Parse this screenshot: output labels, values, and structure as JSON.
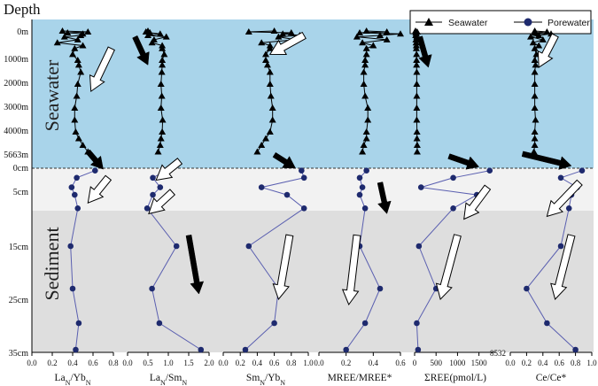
{
  "chart_data": {
    "type": "line",
    "y_axis_title": "Depth",
    "zones": [
      "Seawater",
      "Sediment"
    ],
    "legend": [
      {
        "name": "Seawater",
        "marker": "triangle",
        "color": "#000000"
      },
      {
        "name": "Porewater",
        "marker": "circle",
        "color": "#1e2a6e"
      }
    ],
    "water_y_ticks": [
      "0m",
      "1000m",
      "2000m",
      "3000m",
      "4000m",
      "5663m"
    ],
    "water_y_values": [
      0,
      1000,
      2000,
      3000,
      4000,
      5663
    ],
    "sediment_y_ticks": [
      "0cm",
      "5cm",
      "15cm",
      "25cm",
      "35cm"
    ],
    "sediment_y_values": [
      0,
      5,
      15,
      25,
      35
    ],
    "colors": {
      "seawater_bg": "#a9d4ea",
      "upper_sediment_bg": "#f2f2f2",
      "lower_sediment_bg": "#dedede",
      "porewater_line": "#5a5fb0",
      "marker": "#1e2a6e"
    },
    "panels": [
      {
        "xlabel": "LaN/YbN",
        "xlabel_main": "La",
        "xlabel_sub1": "N",
        "xlabel_mid": "/Yb",
        "xlabel_sub2": "N",
        "xlim": [
          0,
          0.8
        ],
        "ticks": [
          0.0,
          0.2,
          0.4,
          0.6,
          0.8
        ],
        "tick_labels": [
          "0.0",
          "0.2",
          "0.4",
          "0.6",
          "0.8"
        ],
        "seawater": {
          "depth_m": [
            0,
            30,
            60,
            100,
            150,
            200,
            300,
            400,
            500,
            600,
            800,
            1000,
            1200,
            1500,
            2000,
            2500,
            3000,
            3500,
            4000,
            4500,
            5000,
            5500
          ],
          "values": [
            0.3,
            0.55,
            0.35,
            0.5,
            0.48,
            0.32,
            0.45,
            0.25,
            0.5,
            0.42,
            0.4,
            0.45,
            0.46,
            0.48,
            0.45,
            0.44,
            0.42,
            0.42,
            0.43,
            0.46,
            0.5,
            0.55
          ]
        },
        "porewater": {
          "depth_cm": [
            0.5,
            2,
            4,
            5.5,
            8,
            15,
            23,
            29.5,
            34.5
          ],
          "values": [
            0.62,
            0.44,
            0.39,
            0.42,
            0.45,
            0.38,
            0.4,
            0.46,
            0.43
          ]
        },
        "arrows": [
          {
            "type": "hollow",
            "x1": 0.78,
            "d1": 600,
            "x2": 0.58,
            "d2": 2300,
            "zone": "water"
          },
          {
            "type": "solid",
            "x1": 0.55,
            "d1": -3.5,
            "x2": 0.7,
            "d2": 0.2,
            "zone": "sed"
          },
          {
            "type": "hollow",
            "x1": 0.75,
            "d1": 2,
            "x2": 0.55,
            "d2": 7,
            "zone": "sed"
          }
        ]
      },
      {
        "xlabel": "LaN/SmN",
        "xlabel_main": "La",
        "xlabel_sub1": "N",
        "xlabel_mid": "/Sm",
        "xlabel_sub2": "N",
        "xlim": [
          0,
          2.0
        ],
        "ticks": [
          0.0,
          0.5,
          1.0,
          1.5,
          2.0
        ],
        "tick_labels": [
          "0.0",
          "0.5",
          "1.0",
          "1.5",
          "2.0"
        ],
        "seawater": {
          "depth_m": [
            0,
            30,
            60,
            100,
            150,
            200,
            300,
            400,
            500,
            600,
            800,
            1000,
            1200,
            1500,
            2000,
            2500,
            3000,
            3500,
            4000,
            4500,
            5000,
            5500
          ],
          "values": [
            0.5,
            0.45,
            0.55,
            0.8,
            0.5,
            0.95,
            0.65,
            0.6,
            0.85,
            0.85,
            0.9,
            0.85,
            0.85,
            0.84,
            0.82,
            0.84,
            0.82,
            0.86,
            0.85,
            0.82,
            0.8,
            0.75
          ]
        },
        "porewater": {
          "depth_cm": [
            0.5,
            2,
            4,
            5.5,
            8,
            15,
            23,
            29.5,
            34.5
          ],
          "values": [
            0.95,
            0.62,
            0.8,
            0.62,
            0.48,
            1.2,
            0.6,
            0.78,
            1.8
          ]
        },
        "arrows": [
          {
            "type": "solid",
            "x1": 0.18,
            "d1": 200,
            "x2": 0.5,
            "d2": 1200,
            "zone": "water"
          },
          {
            "type": "hollow",
            "x1": 1.28,
            "d1": -1.5,
            "x2": 0.7,
            "d2": 2.5,
            "zone": "sed"
          },
          {
            "type": "hollow",
            "x1": 1.1,
            "d1": 5,
            "x2": 0.52,
            "d2": 9,
            "zone": "sed"
          },
          {
            "type": "solid",
            "x1": 1.5,
            "d1": 13,
            "x2": 1.75,
            "d2": 24,
            "zone": "sed"
          }
        ]
      },
      {
        "xlabel": "SmN/YbN",
        "xlabel_main": "Sm",
        "xlabel_sub1": "N",
        "xlabel_mid": "/Yb",
        "xlabel_sub2": "N",
        "xlim": [
          0,
          1.0
        ],
        "ticks": [
          0.0,
          0.2,
          0.4,
          0.6,
          0.8,
          1.0
        ],
        "tick_labels": [
          "0.0",
          "0.2",
          "0.4",
          "0.6",
          "0.8",
          "1.0"
        ],
        "seawater": {
          "depth_m": [
            0,
            30,
            60,
            100,
            150,
            200,
            300,
            400,
            500,
            600,
            800,
            1000,
            1200,
            1500,
            2000,
            2500,
            3000,
            3500,
            4000,
            4500,
            5000,
            5500
          ],
          "values": [
            0.6,
            0.3,
            0.8,
            0.7,
            0.9,
            0.65,
            0.85,
            0.45,
            0.55,
            0.55,
            0.5,
            0.5,
            0.52,
            0.55,
            0.55,
            0.56,
            0.58,
            0.58,
            0.55,
            0.5,
            0.45,
            0.4
          ]
        },
        "porewater": {
          "depth_cm": [
            0.5,
            2,
            4,
            5.5,
            8,
            15,
            23,
            29.5,
            34.5
          ],
          "values": [
            0.92,
            0.95,
            0.45,
            0.75,
            0.95,
            0.3,
            0.65,
            0.6,
            0.26
          ]
        },
        "arrows": [
          {
            "type": "hollow",
            "x1": 0.95,
            "d1": 150,
            "x2": 0.55,
            "d2": 800,
            "zone": "water"
          },
          {
            "type": "solid",
            "x1": 0.6,
            "d1": -2.8,
            "x2": 0.85,
            "d2": 0,
            "zone": "sed"
          },
          {
            "type": "hollow",
            "x1": 0.78,
            "d1": 13,
            "x2": 0.65,
            "d2": 25,
            "zone": "sed"
          }
        ]
      },
      {
        "xlabel": "MREE/MREE*",
        "xlabel_main": "MREE/MREE*",
        "xlabel_sub1": "",
        "xlabel_mid": "",
        "xlabel_sub2": "",
        "xlim": [
          0,
          0.6
        ],
        "ticks": [
          0.0,
          0.2,
          0.4,
          0.6
        ],
        "tick_labels": [
          "0.0",
          "0.2",
          "0.4",
          "0.6"
        ],
        "seawater": {
          "depth_m": [
            0,
            30,
            60,
            100,
            150,
            200,
            300,
            400,
            500,
            600,
            800,
            1000,
            1200,
            1500,
            2000,
            2500,
            3000,
            3500,
            4000,
            4500,
            5000,
            5500
          ],
          "values": [
            0.35,
            0.5,
            0.3,
            0.6,
            0.45,
            0.28,
            0.5,
            0.32,
            0.4,
            0.35,
            0.35,
            0.34,
            0.34,
            0.33,
            0.33,
            0.34,
            0.36,
            0.36,
            0.35,
            0.35,
            0.33,
            0.32
          ]
        },
        "porewater": {
          "depth_cm": [
            0.5,
            2,
            4,
            5.5,
            8,
            15,
            23,
            29.5,
            34.5
          ],
          "values": [
            0.35,
            0.3,
            0.32,
            0.3,
            0.34,
            0.3,
            0.45,
            0.34,
            0.2
          ]
        },
        "arrows": [
          {
            "type": "solid",
            "x1": 0.45,
            "d1": 3,
            "x2": 0.5,
            "d2": 9,
            "zone": "sed"
          },
          {
            "type": "hollow",
            "x1": 0.28,
            "d1": 13,
            "x2": 0.22,
            "d2": 26,
            "zone": "sed"
          }
        ]
      },
      {
        "xlabel": "ΣREE(pmol/L)",
        "xlabel_main": "ΣREE(pmol/L)",
        "xlabel_sub1": "",
        "xlabel_mid": "",
        "xlabel_sub2": "",
        "xlim": [
          0,
          1900
        ],
        "ticks": [
          0,
          500,
          1000,
          1500
        ],
        "tick_labels": [
          "0",
          "500",
          "1000",
          "1500"
        ],
        "top_tick_label": "8532",
        "seawater": {
          "depth_m": [
            0,
            30,
            60,
            100,
            150,
            200,
            300,
            400,
            500,
            600,
            800,
            1000,
            1200,
            1500,
            2000,
            2500,
            3000,
            3500,
            4000,
            4500,
            5000,
            5500
          ],
          "values": [
            20,
            60,
            30,
            40,
            25,
            50,
            30,
            35,
            40,
            40,
            45,
            45,
            45,
            50,
            50,
            50,
            50,
            50,
            55,
            55,
            60,
            60
          ]
        },
        "porewater": {
          "depth_cm": [
            0.5,
            2,
            4,
            5.5,
            8,
            15,
            23,
            29.5,
            34.5
          ],
          "values": [
            1750,
            900,
            150,
            1450,
            900,
            100,
            500,
            50,
            80
          ]
        },
        "arrows": [
          {
            "type": "solid",
            "x1": 120,
            "d1": 200,
            "x2": 320,
            "d2": 1300,
            "zone": "water"
          },
          {
            "type": "solid",
            "x1": 800,
            "d1": -2.5,
            "x2": 1500,
            "d2": -0.3,
            "zone": "sed"
          },
          {
            "type": "hollow",
            "x1": 1700,
            "d1": 4,
            "x2": 1150,
            "d2": 10,
            "zone": "sed"
          },
          {
            "type": "hollow",
            "x1": 1000,
            "d1": 13,
            "x2": 600,
            "d2": 25,
            "zone": "sed"
          }
        ]
      },
      {
        "xlabel": "Ce/Ce*",
        "xlabel_main": "Ce/Ce*",
        "xlabel_sub1": "",
        "xlabel_mid": "",
        "xlabel_sub2": "",
        "xlim": [
          0,
          1.0
        ],
        "ticks": [
          0.0,
          0.2,
          0.4,
          0.6,
          0.8,
          1.0
        ],
        "tick_labels": [
          "0.0",
          "0.2",
          "0.4",
          "0.6",
          "0.8",
          "1.0"
        ],
        "seawater": {
          "depth_m": [
            0,
            30,
            60,
            100,
            150,
            200,
            300,
            400,
            500,
            600,
            800,
            1000,
            1200,
            1500,
            2000,
            2500,
            3000,
            3500,
            4000,
            4500,
            5000,
            5500
          ],
          "values": [
            0.3,
            0.45,
            0.3,
            0.5,
            0.35,
            0.25,
            0.4,
            0.28,
            0.35,
            0.3,
            0.32,
            0.3,
            0.31,
            0.3,
            0.3,
            0.3,
            0.3,
            0.31,
            0.3,
            0.3,
            0.3,
            0.29
          ]
        },
        "porewater": {
          "depth_cm": [
            0.5,
            2,
            4,
            5.5,
            8,
            15,
            23,
            29.5,
            34.5
          ],
          "values": [
            0.88,
            0.62,
            0.82,
            0.75,
            0.72,
            0.62,
            0.2,
            0.45,
            0.8
          ]
        },
        "arrows": [
          {
            "type": "hollow",
            "x1": 0.55,
            "d1": 150,
            "x2": 0.35,
            "d2": 1300,
            "zone": "water"
          },
          {
            "type": "solid",
            "x1": 0.15,
            "d1": -3,
            "x2": 0.75,
            "d2": -0.5,
            "zone": "sed"
          },
          {
            "type": "hollow",
            "x1": 0.85,
            "d1": 3,
            "x2": 0.45,
            "d2": 9.5,
            "zone": "sed"
          },
          {
            "type": "hollow",
            "x1": 0.75,
            "d1": 13,
            "x2": 0.55,
            "d2": 25,
            "zone": "sed"
          }
        ]
      }
    ]
  }
}
